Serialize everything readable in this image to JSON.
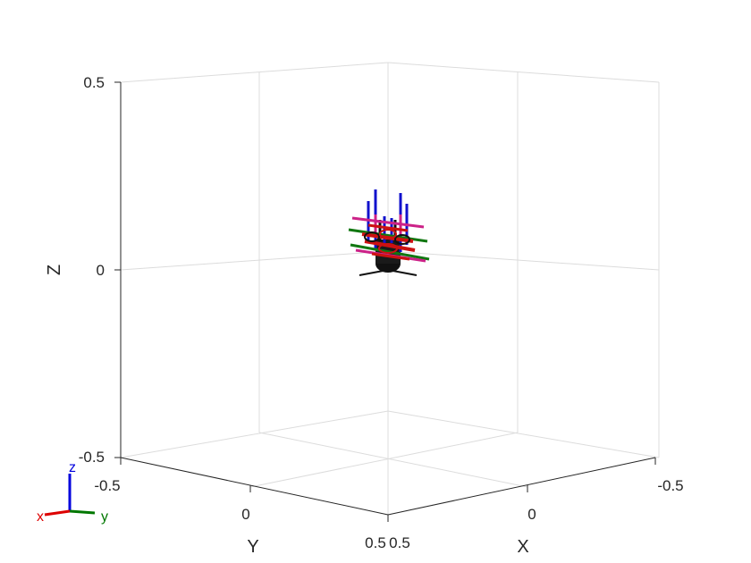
{
  "axes": {
    "x_label": "X",
    "y_label": "Y",
    "z_label": "Z",
    "x_ticks": [
      "-0.5",
      "0",
      "0.5"
    ],
    "y_ticks": [
      "-0.5",
      "0",
      "0.5"
    ],
    "z_ticks": [
      "-0.5",
      "0",
      "0.5"
    ],
    "x_range": [
      -0.5,
      0.5
    ],
    "y_range": [
      -0.5,
      0.5
    ],
    "z_range": [
      -0.5,
      0.5
    ],
    "grid": true
  },
  "orientation_triad": {
    "x_label": "x",
    "y_label": "y",
    "z_label": "z",
    "colors": {
      "x": "#dd0000",
      "y": "#007700",
      "z": "#0000dd"
    }
  },
  "robot_model": {
    "icon": "robot-hand-icon",
    "colors": {
      "x_axis_frames": "#cc1111",
      "y_axis_frames": "#117711",
      "z_axis_frames": "#1111cc",
      "links": "#cc2288",
      "body": "#111111"
    }
  }
}
